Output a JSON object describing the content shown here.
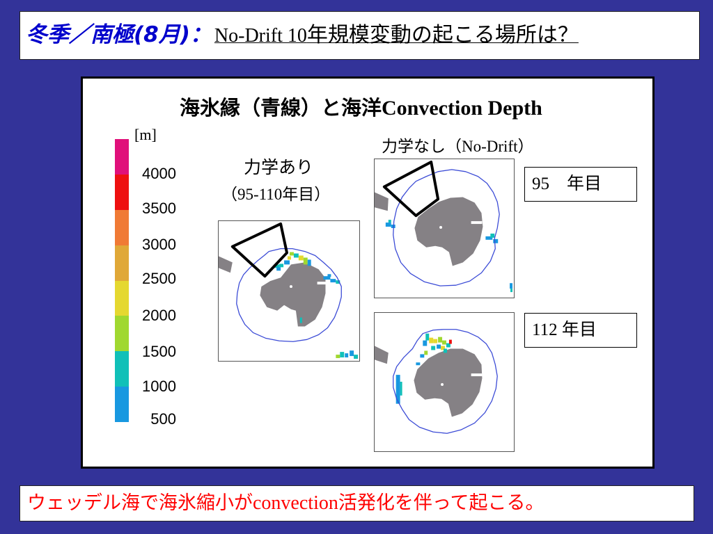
{
  "title": {
    "prefix": "冬季／南極(8月)：",
    "main_latin": "No-Drift 10",
    "main_rest": "年規模変動の起こる場所は？"
  },
  "panel": {
    "heading_jp": "海氷縁（青線）と海洋",
    "heading_en": "Convection Depth",
    "colorbar": {
      "unit": "[m]",
      "ticks": [
        "4000",
        "3500",
        "3000",
        "2500",
        "2000",
        "1500",
        "1000",
        "500"
      ],
      "colors": [
        "#e0107a",
        "#ee1010",
        "#f07a35",
        "#e0a838",
        "#e5d830",
        "#a0d830",
        "#10c0b8",
        "#1898e0"
      ]
    },
    "with_dynamics": {
      "label": "力学あり",
      "period": "（95-110年目）"
    },
    "no_drift": {
      "label": "力学なし（No-Drift）"
    },
    "year_labels": [
      "95　年目",
      "112 年目"
    ]
  },
  "conclusion": {
    "part1": "ウェッデル海で海氷縮小が",
    "part2": "convection",
    "part3": "活発化を伴って起こる。"
  },
  "colors": {
    "background": "#333399",
    "title_prefix": "#0000cc",
    "conclusion_text": "#ff0000",
    "landmass": "#858185",
    "ice_edge": "#3b4bd6",
    "region_outline": "#000000"
  }
}
